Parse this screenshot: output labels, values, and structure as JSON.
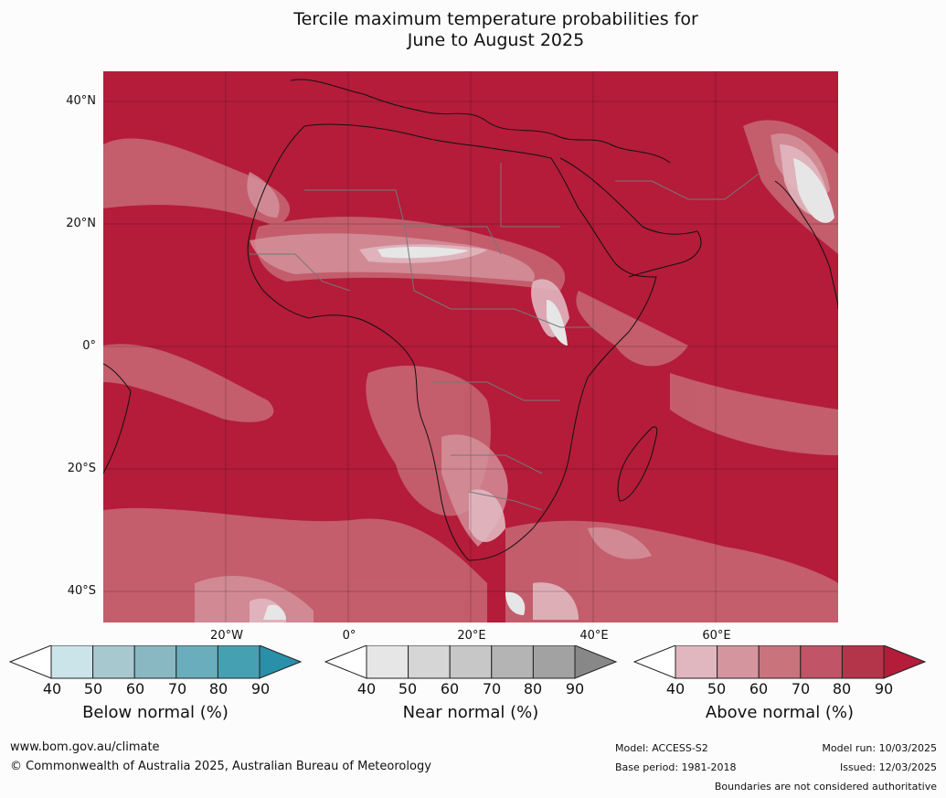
{
  "title_line1": "Tercile maximum temperature probabilities for",
  "title_line2": "June to August 2025",
  "map": {
    "lat_ticks": [
      "40°N",
      "20°N",
      "0°",
      "20°S",
      "40°S"
    ],
    "lon_ticks": [
      "20°W",
      "0°",
      "20°E",
      "40°E",
      "60°E"
    ],
    "dominant_color": "#b41c3a"
  },
  "legends": [
    {
      "label": "Below normal (%)",
      "ticks": [
        "40",
        "50",
        "60",
        "70",
        "80",
        "90"
      ],
      "colors": [
        "#ffffff",
        "#cbe4ea",
        "#a8c8cf",
        "#89b7c2",
        "#6aaebd",
        "#45a1b2",
        "#2a8fa8"
      ]
    },
    {
      "label": "Near normal (%)",
      "ticks": [
        "40",
        "50",
        "60",
        "70",
        "80",
        "90"
      ],
      "colors": [
        "#ffffff",
        "#e6e6e6",
        "#d6d6d6",
        "#c7c7c7",
        "#b4b4b4",
        "#a2a2a2",
        "#888888"
      ]
    },
    {
      "label": "Above normal (%)",
      "ticks": [
        "40",
        "50",
        "60",
        "70",
        "80",
        "90"
      ],
      "colors": [
        "#ffffff",
        "#e1b7bf",
        "#d4959f",
        "#c9737d",
        "#c15466",
        "#b4354a",
        "#b41c3a"
      ]
    }
  ],
  "footer": {
    "url": "www.bom.gov.au/climate",
    "copyright": "© Commonwealth of Australia 2025, Australian Bureau of Meteorology",
    "model": "Model: ACCESS-S2",
    "base_period": "Base period: 1981-2018",
    "model_run": "Model run: 10/03/2025",
    "issued": "Issued: 12/03/2025",
    "disclaimer": "Boundaries are not considered authoritative"
  }
}
